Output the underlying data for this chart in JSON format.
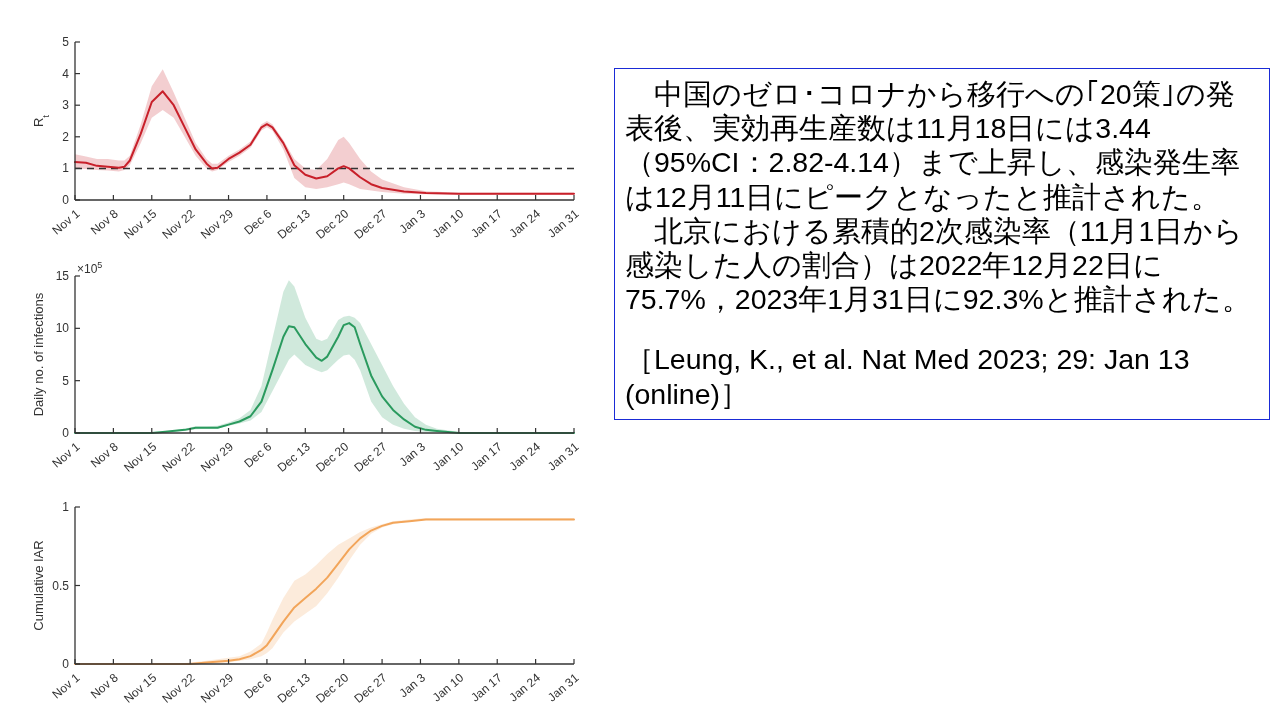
{
  "chart_data": [
    {
      "type": "line",
      "ylabel": "R$_{t}$",
      "xlim": [
        "2022-11-01",
        "2023-01-31"
      ],
      "ylim": [
        0,
        5
      ],
      "yticks": [
        0,
        1,
        2,
        3,
        4,
        5
      ],
      "xticks": [
        {
          "value": "2022-11-01",
          "label": "Nov 1"
        },
        {
          "value": "2022-11-08",
          "label": "Nov 8"
        },
        {
          "value": "2022-11-15",
          "label": "Nov 15"
        },
        {
          "value": "2022-11-22",
          "label": "Nov 22"
        },
        {
          "value": "2022-11-29",
          "label": "Nov 29"
        },
        {
          "value": "2022-12-06",
          "label": "Dec 6"
        },
        {
          "value": "2022-12-13",
          "label": "Dec 13"
        },
        {
          "value": "2022-12-20",
          "label": "Dec 20"
        },
        {
          "value": "2022-12-27",
          "label": "Dec 27"
        },
        {
          "value": "2023-01-03",
          "label": "Jan 3"
        },
        {
          "value": "2023-01-10",
          "label": "Jan 10"
        },
        {
          "value": "2023-01-17",
          "label": "Jan 17"
        },
        {
          "value": "2023-01-24",
          "label": "Jan 24"
        },
        {
          "value": "2023-01-31",
          "label": "Jan 31"
        }
      ],
      "ref_lines": [
        {
          "axis": "y",
          "value": 1,
          "color": "#333333",
          "line_style": "dashed"
        }
      ],
      "series": [
        {
          "color": "#c8202a",
          "x": [
            "2022-11-01",
            "2022-11-03",
            "2022-11-05",
            "2022-11-07",
            "2022-11-09",
            "2022-11-10",
            "2022-11-11",
            "2022-11-13",
            "2022-11-15",
            "2022-11-17",
            "2022-11-19",
            "2022-11-21",
            "2022-11-23",
            "2022-11-25",
            "2022-11-26",
            "2022-11-27",
            "2022-11-29",
            "2022-12-01",
            "2022-12-03",
            "2022-12-05",
            "2022-12-06",
            "2022-12-07",
            "2022-12-09",
            "2022-12-11",
            "2022-12-13",
            "2022-12-15",
            "2022-12-17",
            "2022-12-19",
            "2022-12-20",
            "2022-12-21",
            "2022-12-23",
            "2022-12-25",
            "2022-12-27",
            "2022-12-31",
            "2023-01-04",
            "2023-01-10",
            "2023-01-31"
          ],
          "values": [
            1.2,
            1.18,
            1.08,
            1.05,
            1.02,
            1.05,
            1.25,
            2.1,
            3.1,
            3.44,
            3.0,
            2.3,
            1.6,
            1.15,
            1.0,
            1.02,
            1.3,
            1.5,
            1.75,
            2.3,
            2.4,
            2.3,
            1.8,
            1.1,
            0.8,
            0.68,
            0.75,
            1.0,
            1.07,
            1.0,
            0.72,
            0.5,
            0.38,
            0.27,
            0.22,
            0.2,
            0.2
          ],
          "lower": [
            1.0,
            0.98,
            0.95,
            0.93,
            0.9,
            0.95,
            1.1,
            1.8,
            2.6,
            2.85,
            2.6,
            2.0,
            1.4,
            1.0,
            0.9,
            0.95,
            1.2,
            1.4,
            1.65,
            2.2,
            2.3,
            2.2,
            1.6,
            0.7,
            0.4,
            0.35,
            0.4,
            0.5,
            0.55,
            0.5,
            0.35,
            0.3,
            0.25,
            0.2,
            0.18,
            0.17,
            0.17
          ],
          "upper": [
            1.45,
            1.38,
            1.3,
            1.3,
            1.25,
            1.25,
            1.4,
            2.4,
            3.6,
            4.14,
            3.4,
            2.6,
            1.8,
            1.3,
            1.15,
            1.15,
            1.4,
            1.6,
            1.85,
            2.4,
            2.5,
            2.4,
            1.9,
            1.3,
            1.0,
            0.95,
            1.3,
            1.9,
            2.0,
            1.8,
            1.3,
            0.9,
            0.65,
            0.4,
            0.28,
            0.23,
            0.23
          ]
        }
      ]
    },
    {
      "type": "line",
      "ylabel": "Daily no. of infections",
      "annotations": [
        "×10$^{5}$"
      ],
      "xlim": [
        "2022-11-01",
        "2023-01-31"
      ],
      "ylim": [
        0,
        15
      ],
      "yticks": [
        0,
        5,
        10,
        15
      ],
      "xticks": [
        {
          "value": "2022-11-01",
          "label": "Nov 1"
        },
        {
          "value": "2022-11-08",
          "label": "Nov 8"
        },
        {
          "value": "2022-11-15",
          "label": "Nov 15"
        },
        {
          "value": "2022-11-22",
          "label": "Nov 22"
        },
        {
          "value": "2022-11-29",
          "label": "Nov 29"
        },
        {
          "value": "2022-12-06",
          "label": "Dec 6"
        },
        {
          "value": "2022-12-13",
          "label": "Dec 13"
        },
        {
          "value": "2022-12-20",
          "label": "Dec 20"
        },
        {
          "value": "2022-12-27",
          "label": "Dec 27"
        },
        {
          "value": "2023-01-03",
          "label": "Jan 3"
        },
        {
          "value": "2023-01-10",
          "label": "Jan 10"
        },
        {
          "value": "2023-01-17",
          "label": "Jan 17"
        },
        {
          "value": "2023-01-24",
          "label": "Jan 24"
        },
        {
          "value": "2023-01-31",
          "label": "Jan 31"
        }
      ],
      "series": [
        {
          "color": "#2a9a5e",
          "x": [
            "2022-11-01",
            "2022-11-15",
            "2022-11-17",
            "2022-11-21",
            "2022-11-23",
            "2022-11-25",
            "2022-11-27",
            "2022-11-29",
            "2022-12-01",
            "2022-12-03",
            "2022-12-05",
            "2022-12-07",
            "2022-12-09",
            "2022-12-10",
            "2022-12-11",
            "2022-12-13",
            "2022-12-15",
            "2022-12-16",
            "2022-12-17",
            "2022-12-19",
            "2022-12-20",
            "2022-12-21",
            "2022-12-22",
            "2022-12-23",
            "2022-12-25",
            "2022-12-27",
            "2022-12-29",
            "2022-12-31",
            "2023-01-02",
            "2023-01-04",
            "2023-01-06",
            "2023-01-10",
            "2023-01-31"
          ],
          "values": [
            0,
            0,
            0.1,
            0.3,
            0.5,
            0.5,
            0.5,
            0.8,
            1.1,
            1.6,
            3,
            6,
            9.2,
            10.2,
            10.1,
            8.5,
            7.2,
            6.9,
            7.3,
            9.2,
            10.3,
            10.5,
            10.1,
            8.5,
            5.5,
            3.5,
            2.2,
            1.3,
            0.6,
            0.3,
            0.2,
            0,
            0
          ],
          "lower": [
            0,
            0,
            0,
            0.2,
            0.35,
            0.4,
            0.4,
            0.7,
            0.9,
            1.2,
            2,
            4,
            6,
            7,
            7.5,
            6.5,
            6,
            5.8,
            6,
            7,
            7.4,
            7.5,
            7,
            6,
            3,
            1.5,
            0.8,
            0.4,
            0.2,
            0.1,
            0.1,
            0,
            0
          ],
          "upper": [
            0,
            0,
            0.1,
            0.4,
            0.65,
            0.65,
            0.7,
            1,
            1.4,
            2.2,
            4.5,
            9,
            13.5,
            14.6,
            14,
            11,
            9,
            8.8,
            9,
            10.8,
            11.1,
            11.2,
            11,
            10.5,
            8.5,
            6.5,
            4.5,
            2.8,
            1.5,
            0.8,
            0.4,
            0.1,
            0
          ]
        }
      ]
    },
    {
      "type": "line",
      "ylabel": "Cumulative IAR",
      "xlim": [
        "2022-11-01",
        "2023-01-31"
      ],
      "ylim": [
        0,
        1
      ],
      "yticks": [
        0,
        0.5,
        1
      ],
      "xticks": [
        {
          "value": "2022-11-01",
          "label": "Nov 1"
        },
        {
          "value": "2022-11-08",
          "label": "Nov 8"
        },
        {
          "value": "2022-11-15",
          "label": "Nov 15"
        },
        {
          "value": "2022-11-22",
          "label": "Nov 22"
        },
        {
          "value": "2022-11-29",
          "label": "Nov 29"
        },
        {
          "value": "2022-12-06",
          "label": "Dec 6"
        },
        {
          "value": "2022-12-13",
          "label": "Dec 13"
        },
        {
          "value": "2022-12-20",
          "label": "Dec 20"
        },
        {
          "value": "2022-12-27",
          "label": "Dec 27"
        },
        {
          "value": "2023-01-03",
          "label": "Jan 3"
        },
        {
          "value": "2023-01-10",
          "label": "Jan 10"
        },
        {
          "value": "2023-01-17",
          "label": "Jan 17"
        },
        {
          "value": "2023-01-24",
          "label": "Jan 24"
        },
        {
          "value": "2023-01-31",
          "label": "Jan 31"
        }
      ],
      "series": [
        {
          "color": "#f2a55a",
          "x": [
            "2022-11-01",
            "2022-11-19",
            "2022-11-22",
            "2022-11-25",
            "2022-11-29",
            "2022-12-01",
            "2022-12-03",
            "2022-12-05",
            "2022-12-06",
            "2022-12-07",
            "2022-12-09",
            "2022-12-11",
            "2022-12-13",
            "2022-12-15",
            "2022-12-17",
            "2022-12-19",
            "2022-12-21",
            "2022-12-23",
            "2022-12-25",
            "2022-12-27",
            "2022-12-29",
            "2023-01-01",
            "2023-01-04",
            "2023-01-31"
          ],
          "values": [
            0,
            0,
            0,
            0.01,
            0.02,
            0.03,
            0.05,
            0.09,
            0.12,
            0.17,
            0.27,
            0.36,
            0.42,
            0.48,
            0.55,
            0.64,
            0.73,
            0.8,
            0.85,
            0.88,
            0.9,
            0.91,
            0.92,
            0.92
          ],
          "lower": [
            0,
            0,
            0,
            0,
            0.01,
            0.02,
            0.03,
            0.05,
            0.07,
            0.1,
            0.2,
            0.27,
            0.32,
            0.37,
            0.45,
            0.55,
            0.66,
            0.76,
            0.83,
            0.87,
            0.89,
            0.91,
            0.92,
            0.92
          ],
          "upper": [
            0,
            0,
            0.01,
            0.02,
            0.04,
            0.05,
            0.08,
            0.13,
            0.2,
            0.28,
            0.42,
            0.53,
            0.57,
            0.63,
            0.7,
            0.76,
            0.8,
            0.84,
            0.87,
            0.89,
            0.91,
            0.92,
            0.93,
            0.93
          ]
        }
      ]
    },
    {
      "type": "other",
      "annotations": [
        "　中国のゼロ･コロナから移行への｢20策｣の発表後、実効再生産数は11月18日には3.44（95%CI：2.82-4.14）まで上昇し、感染発生率は12月11日にピークとなったと推計された。",
        "　北京における累積的2次感染率（11月1日から感染した人の割合）は2022年12月22日に75.7%，2023年1月31日に92.3%と推計された。",
        "［Leung, K., et al. Nat Med 2023; 29: Jan 13 (online)］"
      ]
    }
  ]
}
